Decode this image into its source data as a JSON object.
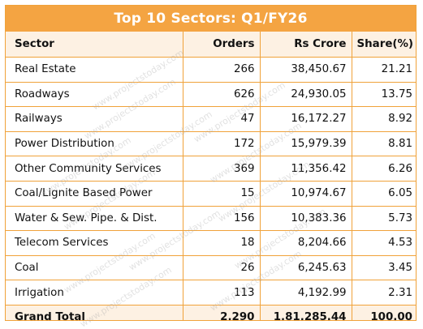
{
  "chart_data": {
    "type": "table",
    "title": "Top 10 Sectors: Q1/FY26",
    "columns": [
      "Sector",
      "Orders",
      "Rs Crore",
      "Share(%)"
    ],
    "rows": [
      {
        "sector": "Real Estate",
        "orders": "266",
        "crore": "38,450.67",
        "share": "21.21"
      },
      {
        "sector": "Roadways",
        "orders": "626",
        "crore": "24,930.05",
        "share": "13.75"
      },
      {
        "sector": "Railways",
        "orders": "47",
        "crore": "16,172.27",
        "share": "8.92"
      },
      {
        "sector": "Power Distribution",
        "orders": "172",
        "crore": "15,979.39",
        "share": "8.81"
      },
      {
        "sector": "Other Community Services",
        "orders": "369",
        "crore": "11,356.42",
        "share": "6.26"
      },
      {
        "sector": "Coal/Lignite Based Power",
        "orders": "15",
        "crore": "10,974.67",
        "share": "6.05"
      },
      {
        "sector": "Water & Sew. Pipe. & Dist.",
        "orders": "156",
        "crore": "10,383.36",
        "share": "5.73"
      },
      {
        "sector": "Telecom Services",
        "orders": "18",
        "crore": "8,204.66",
        "share": "4.53"
      },
      {
        "sector": "Coal",
        "orders": "26",
        "crore": "6,245.63",
        "share": "3.45"
      },
      {
        "sector": "Irrigation",
        "orders": "113",
        "crore": "4,192.99",
        "share": "2.31"
      }
    ],
    "total": {
      "label": "Grand Total",
      "orders": "2,290",
      "crore": "1,81,285.44",
      "share": "100.00"
    }
  },
  "watermark_text": "www.projectstoday.com",
  "colors": {
    "title_bg": "#f4a442",
    "header_bg": "#fdf1e3",
    "border": "#f0a23a",
    "title_text": "#ffffff"
  }
}
